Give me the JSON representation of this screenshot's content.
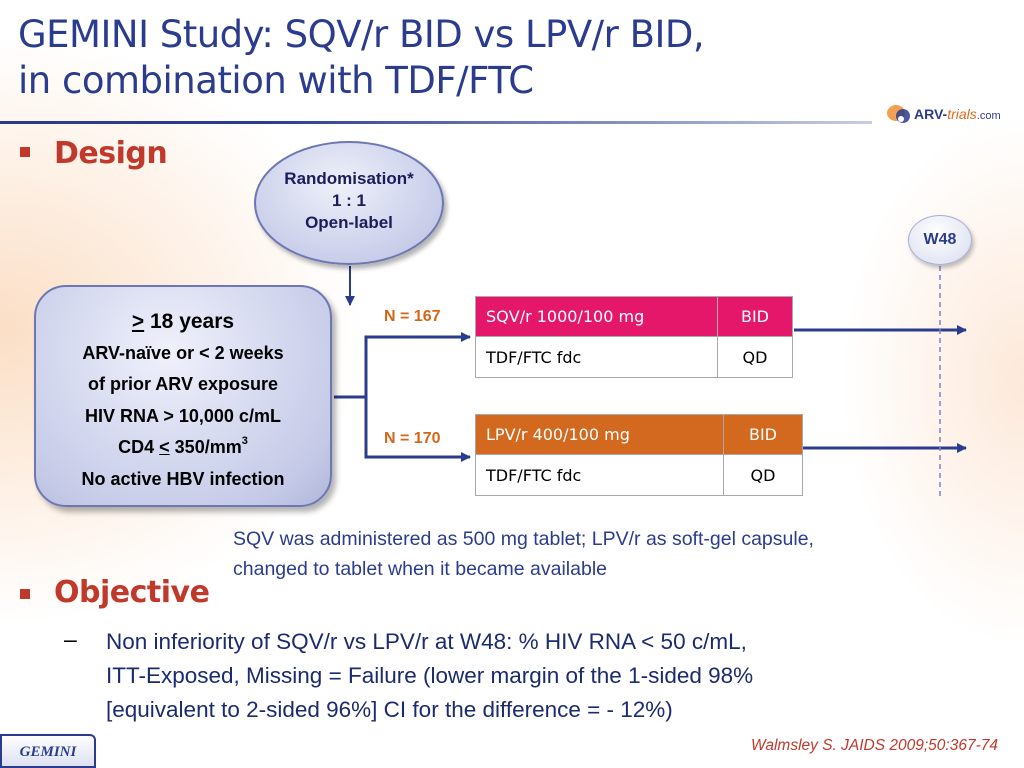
{
  "title": {
    "line1": "GEMINI Study: SQV/r BID vs LPV/r BID,",
    "line2": "in combination with TDF/FTC"
  },
  "logo": {
    "part1": "ARV-",
    "part2": "trials",
    "part3": ".com"
  },
  "design": {
    "heading": "Design"
  },
  "randomisation": {
    "line1": "Randomisation*",
    "line2": "1 : 1",
    "line3": "Open-label"
  },
  "criteria": {
    "age_symbol": ">",
    "age_text": " 18 years",
    "line2": "ARV-naïve or < 2 weeks",
    "line3": "of prior ARV exposure",
    "line4": "HIV RNA > 10,000 c/mL",
    "cd4_prefix": "CD4 ",
    "cd4_symbol": "<",
    "cd4_value": " 350/mm",
    "cd4_exp": "3",
    "line6": "No active HBV infection"
  },
  "arms": [
    {
      "n_label": "N = 167",
      "header_color": "#e4176b",
      "rows": [
        {
          "drug": "SQV/r 1000/100 mg",
          "frequency": "BID"
        },
        {
          "drug": "TDF/FTC fdc",
          "frequency": "QD"
        }
      ]
    },
    {
      "n_label": "N = 170",
      "header_color": "#d2691e",
      "rows": [
        {
          "drug": "LPV/r 400/100 mg",
          "frequency": "BID"
        },
        {
          "drug": "TDF/FTC fdc",
          "frequency": "QD"
        }
      ]
    }
  ],
  "timepoint": {
    "label": "W48"
  },
  "note": {
    "line1": "SQV was administered as 500 mg tablet; LPV/r as soft-gel capsule,",
    "line2": "changed to tablet when it became available"
  },
  "objective": {
    "heading": "Objective",
    "dash": "–",
    "line1": "Non inferiority of SQV/r vs LPV/r at W48: % HIV RNA < 50 c/mL,",
    "line2": "ITT-Exposed, Missing = Failure (lower margin of the 1-sided 98%",
    "line3": "[equivalent to 2-sided 96%] CI for the difference = - 12%)"
  },
  "footer": {
    "study_tag": "GEMINI",
    "citation": "Walmsley S. JAIDS 2009;50:367-74"
  },
  "colors": {
    "title": "#2b3c8e",
    "heading": "#c0392b",
    "n_label": "#d4661a",
    "note": "#2b3c8e"
  }
}
